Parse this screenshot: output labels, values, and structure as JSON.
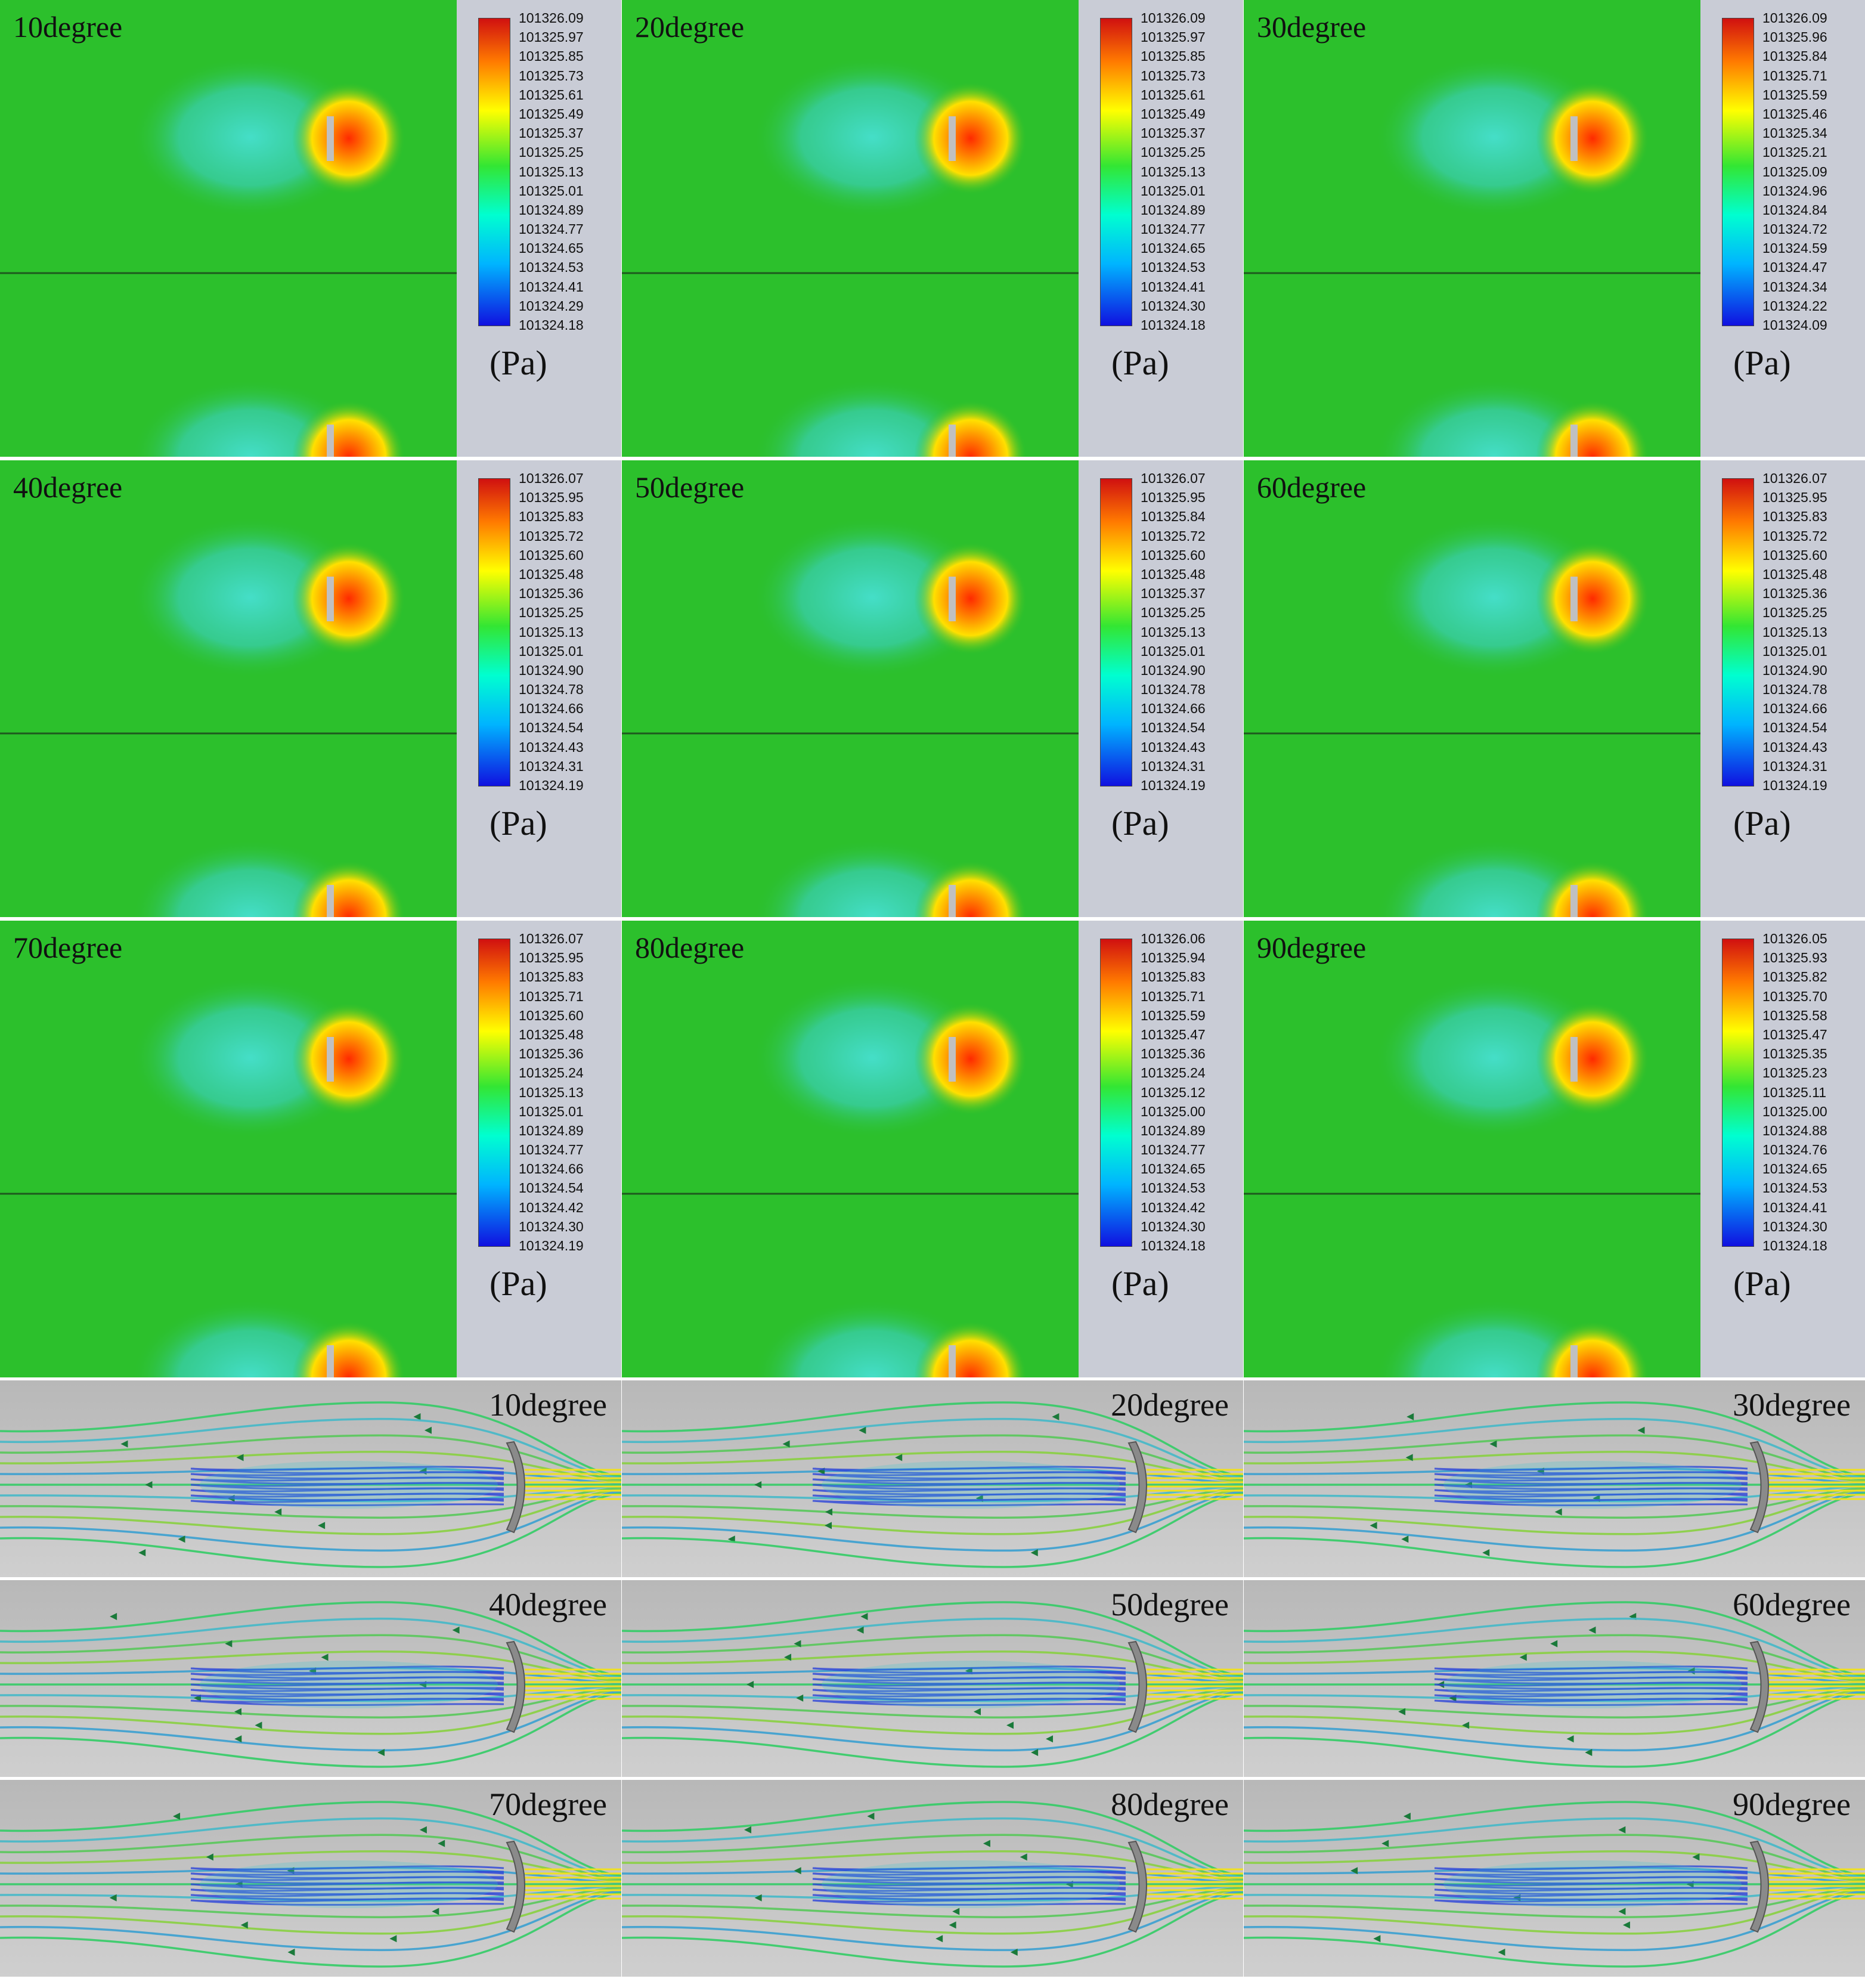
{
  "pressure_panels": [
    {
      "title": "10degree",
      "ticks": [
        "101326.09",
        "101325.97",
        "101325.85",
        "101325.73",
        "101325.61",
        "101325.49",
        "101325.37",
        "101325.25",
        "101325.13",
        "101325.01",
        "101324.89",
        "101324.77",
        "101324.65",
        "101324.53",
        "101324.41",
        "101324.29",
        "101324.18"
      ]
    },
    {
      "title": "20degree",
      "ticks": [
        "101326.09",
        "101325.97",
        "101325.85",
        "101325.73",
        "101325.61",
        "101325.49",
        "101325.37",
        "101325.25",
        "101325.13",
        "101325.01",
        "101324.89",
        "101324.77",
        "101324.65",
        "101324.53",
        "101324.41",
        "101324.30",
        "101324.18"
      ]
    },
    {
      "title": "30degree",
      "ticks": [
        "101326.09",
        "101325.96",
        "101325.84",
        "101325.71",
        "101325.59",
        "101325.46",
        "101325.34",
        "101325.21",
        "101325.09",
        "101324.96",
        "101324.84",
        "101324.72",
        "101324.59",
        "101324.47",
        "101324.34",
        "101324.22",
        "101324.09"
      ]
    },
    {
      "title": "40degree",
      "ticks": [
        "101326.07",
        "101325.95",
        "101325.83",
        "101325.72",
        "101325.60",
        "101325.48",
        "101325.36",
        "101325.25",
        "101325.13",
        "101325.01",
        "101324.90",
        "101324.78",
        "101324.66",
        "101324.54",
        "101324.43",
        "101324.31",
        "101324.19"
      ]
    },
    {
      "title": "50degree",
      "ticks": [
        "101326.07",
        "101325.95",
        "101325.84",
        "101325.72",
        "101325.60",
        "101325.48",
        "101325.37",
        "101325.25",
        "101325.13",
        "101325.01",
        "101324.90",
        "101324.78",
        "101324.66",
        "101324.54",
        "101324.43",
        "101324.31",
        "101324.19"
      ]
    },
    {
      "title": "60degree",
      "ticks": [
        "101326.07",
        "101325.95",
        "101325.83",
        "101325.72",
        "101325.60",
        "101325.48",
        "101325.36",
        "101325.25",
        "101325.13",
        "101325.01",
        "101324.90",
        "101324.78",
        "101324.66",
        "101324.54",
        "101324.43",
        "101324.31",
        "101324.19"
      ]
    },
    {
      "title": "70degree",
      "ticks": [
        "101326.07",
        "101325.95",
        "101325.83",
        "101325.71",
        "101325.60",
        "101325.48",
        "101325.36",
        "101325.24",
        "101325.13",
        "101325.01",
        "101324.89",
        "101324.77",
        "101324.66",
        "101324.54",
        "101324.42",
        "101324.30",
        "101324.19"
      ]
    },
    {
      "title": "80degree",
      "ticks": [
        "101326.06",
        "101325.94",
        "101325.83",
        "101325.71",
        "101325.59",
        "101325.47",
        "101325.36",
        "101325.24",
        "101325.12",
        "101325.00",
        "101324.89",
        "101324.77",
        "101324.65",
        "101324.53",
        "101324.42",
        "101324.30",
        "101324.18"
      ]
    },
    {
      "title": "90degree",
      "ticks": [
        "101326.05",
        "101325.93",
        "101325.82",
        "101325.70",
        "101325.58",
        "101325.47",
        "101325.35",
        "101325.23",
        "101325.11",
        "101325.00",
        "101324.88",
        "101324.76",
        "101324.65",
        "101324.53",
        "101324.41",
        "101324.30",
        "101324.18"
      ]
    }
  ],
  "unit_label": "(Pa)",
  "streamline_panels": [
    {
      "title": "10degree"
    },
    {
      "title": "20degree"
    },
    {
      "title": "30degree"
    },
    {
      "title": "40degree"
    },
    {
      "title": "50degree"
    },
    {
      "title": "60degree"
    },
    {
      "title": "70degree"
    },
    {
      "title": "80degree"
    },
    {
      "title": "90degree"
    }
  ],
  "colors": {
    "field_green": "#2cc02c",
    "low_pressure": "#3ad8c8",
    "high_pressure": "#ff6a00",
    "legend_bg": "#c9ccd6",
    "stream_bg": "#bdbdbd"
  }
}
